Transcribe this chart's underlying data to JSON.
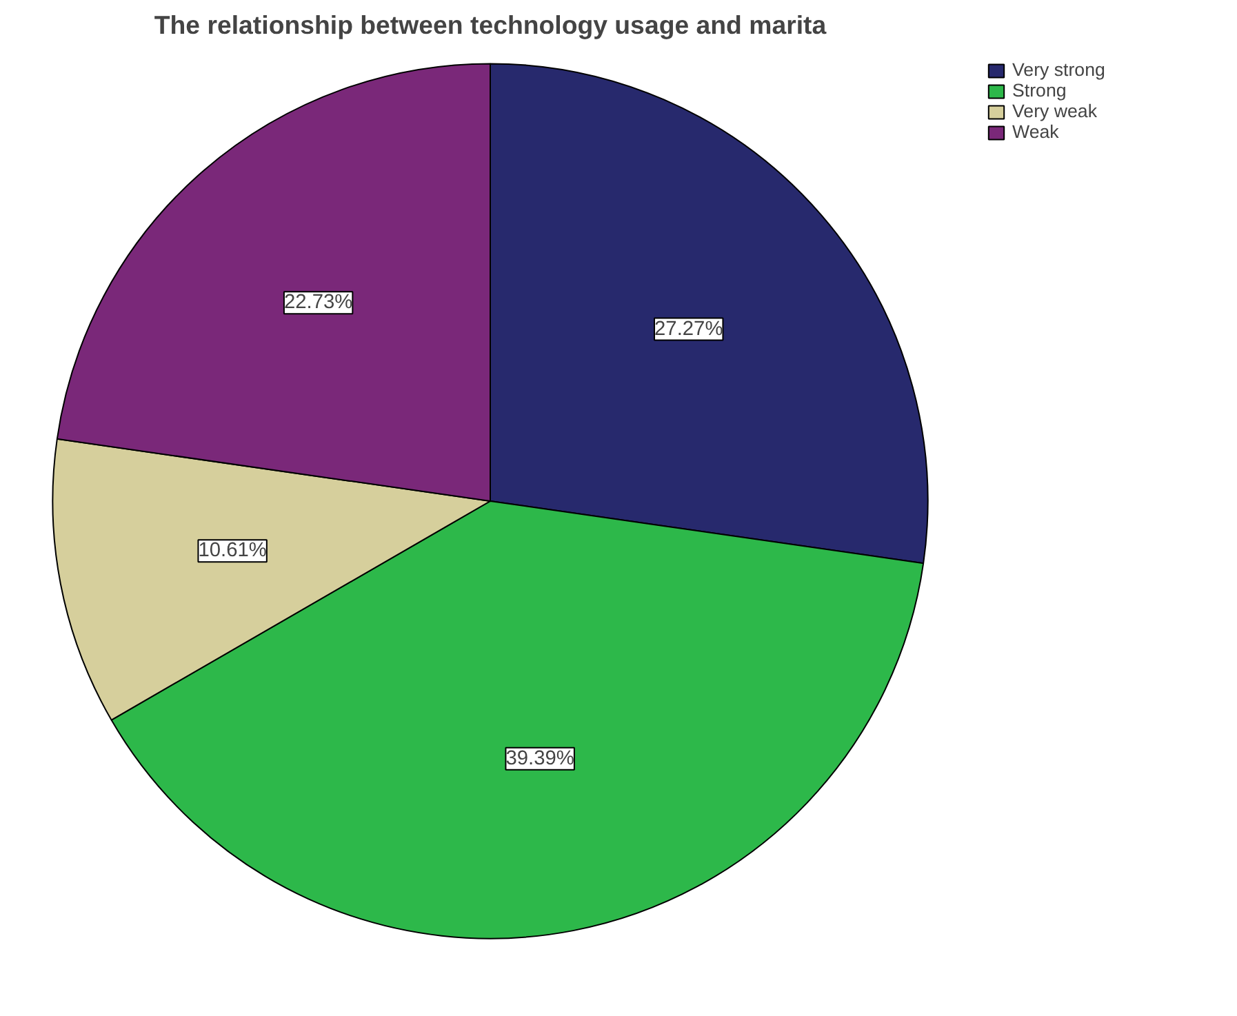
{
  "chart_data": {
    "type": "pie",
    "title": "The relationship between technology usage and marita",
    "categories": [
      "Very strong",
      "Strong",
      "Very weak",
      "Weak"
    ],
    "values": [
      27.27,
      39.39,
      10.61,
      22.73
    ],
    "colors": [
      "#27296d",
      "#2db84a",
      "#d6cf9c",
      "#7a2879"
    ],
    "value_labels": [
      "27.27%",
      "39.39%",
      "10.61%",
      "22.73%"
    ],
    "legend": "top right"
  }
}
